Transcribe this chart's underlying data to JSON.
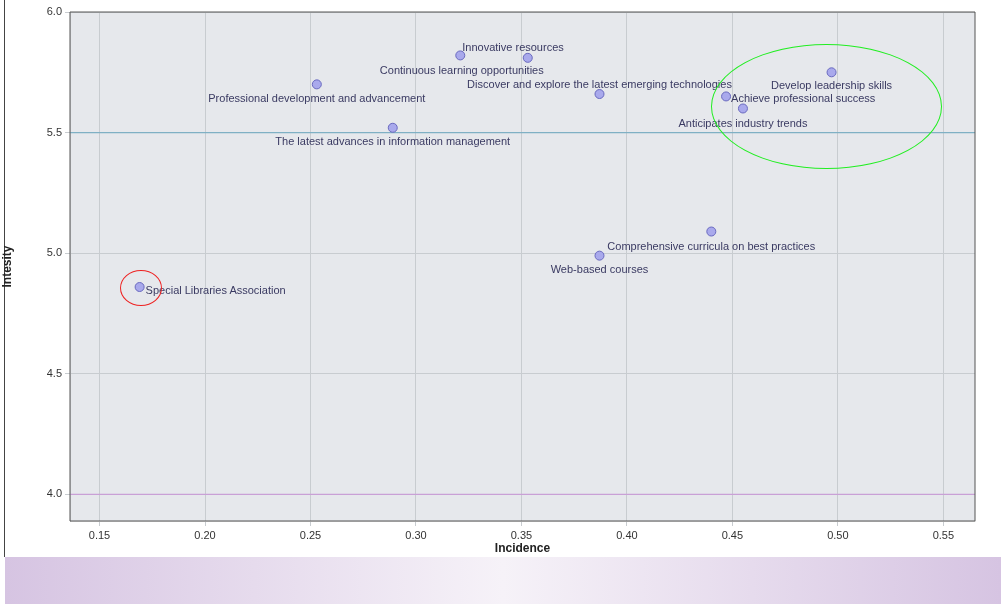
{
  "chart_data": {
    "type": "scatter",
    "xlabel": "Incidence",
    "ylabel": "Intesity",
    "xlim": [
      0.136,
      0.565
    ],
    "ylim": [
      3.89,
      6.0
    ],
    "xticks": [
      {
        "value": 0.15,
        "label": "0.15"
      },
      {
        "value": 0.2,
        "label": "0.20"
      },
      {
        "value": 0.25,
        "label": "0.25"
      },
      {
        "value": 0.3,
        "label": "0.30"
      },
      {
        "value": 0.35,
        "label": "0.35"
      },
      {
        "value": 0.4,
        "label": "0.40"
      },
      {
        "value": 0.45,
        "label": "0.45"
      },
      {
        "value": 0.5,
        "label": "0.50"
      },
      {
        "value": 0.55,
        "label": "0.55"
      }
    ],
    "yticks": [
      {
        "value": 4.0,
        "label": "4.0"
      },
      {
        "value": 4.5,
        "label": "4.5"
      },
      {
        "value": 5.0,
        "label": "5.0"
      },
      {
        "value": 5.5,
        "label": "5.5"
      },
      {
        "value": 6.0,
        "label": "6.0"
      }
    ],
    "grid": true,
    "legend": false,
    "marker": "circle",
    "series": [
      {
        "color": "#a9a9ec",
        "x": [
          0.321,
          0.353,
          0.253,
          0.387,
          0.289,
          0.497,
          0.447,
          0.455,
          0.44,
          0.387,
          0.169
        ],
        "values": [
          5.82,
          5.81,
          5.7,
          5.66,
          5.52,
          5.75,
          5.65,
          5.6,
          5.09,
          4.99,
          4.86
        ]
      }
    ],
    "ref_lines": [
      {
        "axis": "y",
        "value": 5.5,
        "color": "#7fb0c4"
      },
      {
        "axis": "y",
        "value": 4.0,
        "color": "#c9a0d6"
      }
    ],
    "annotations": [
      {
        "text": "Innovative resources",
        "x": 0.321,
        "y": 5.82
      },
      {
        "text": "Continuous learning opportunities",
        "x": 0.353,
        "y": 5.81
      },
      {
        "text": "Professional development and advancement",
        "x": 0.253,
        "y": 5.7
      },
      {
        "text": "Discover and explore the latest emerging technologies",
        "x": 0.387,
        "y": 5.66
      },
      {
        "text": "The latest advances in information management",
        "x": 0.289,
        "y": 5.52
      },
      {
        "text": "Develop leadership skills",
        "x": 0.497,
        "y": 5.75
      },
      {
        "text": "Achieve professional success",
        "x": 0.447,
        "y": 5.65
      },
      {
        "text": "Anticipates industry trends",
        "x": 0.455,
        "y": 5.6
      },
      {
        "text": "Comprehensive curricula on best practices",
        "x": 0.44,
        "y": 5.09
      },
      {
        "text": "Web-based courses",
        "x": 0.387,
        "y": 4.99
      },
      {
        "text": "Special Libraries Association",
        "x": 0.169,
        "y": 4.86
      }
    ]
  }
}
